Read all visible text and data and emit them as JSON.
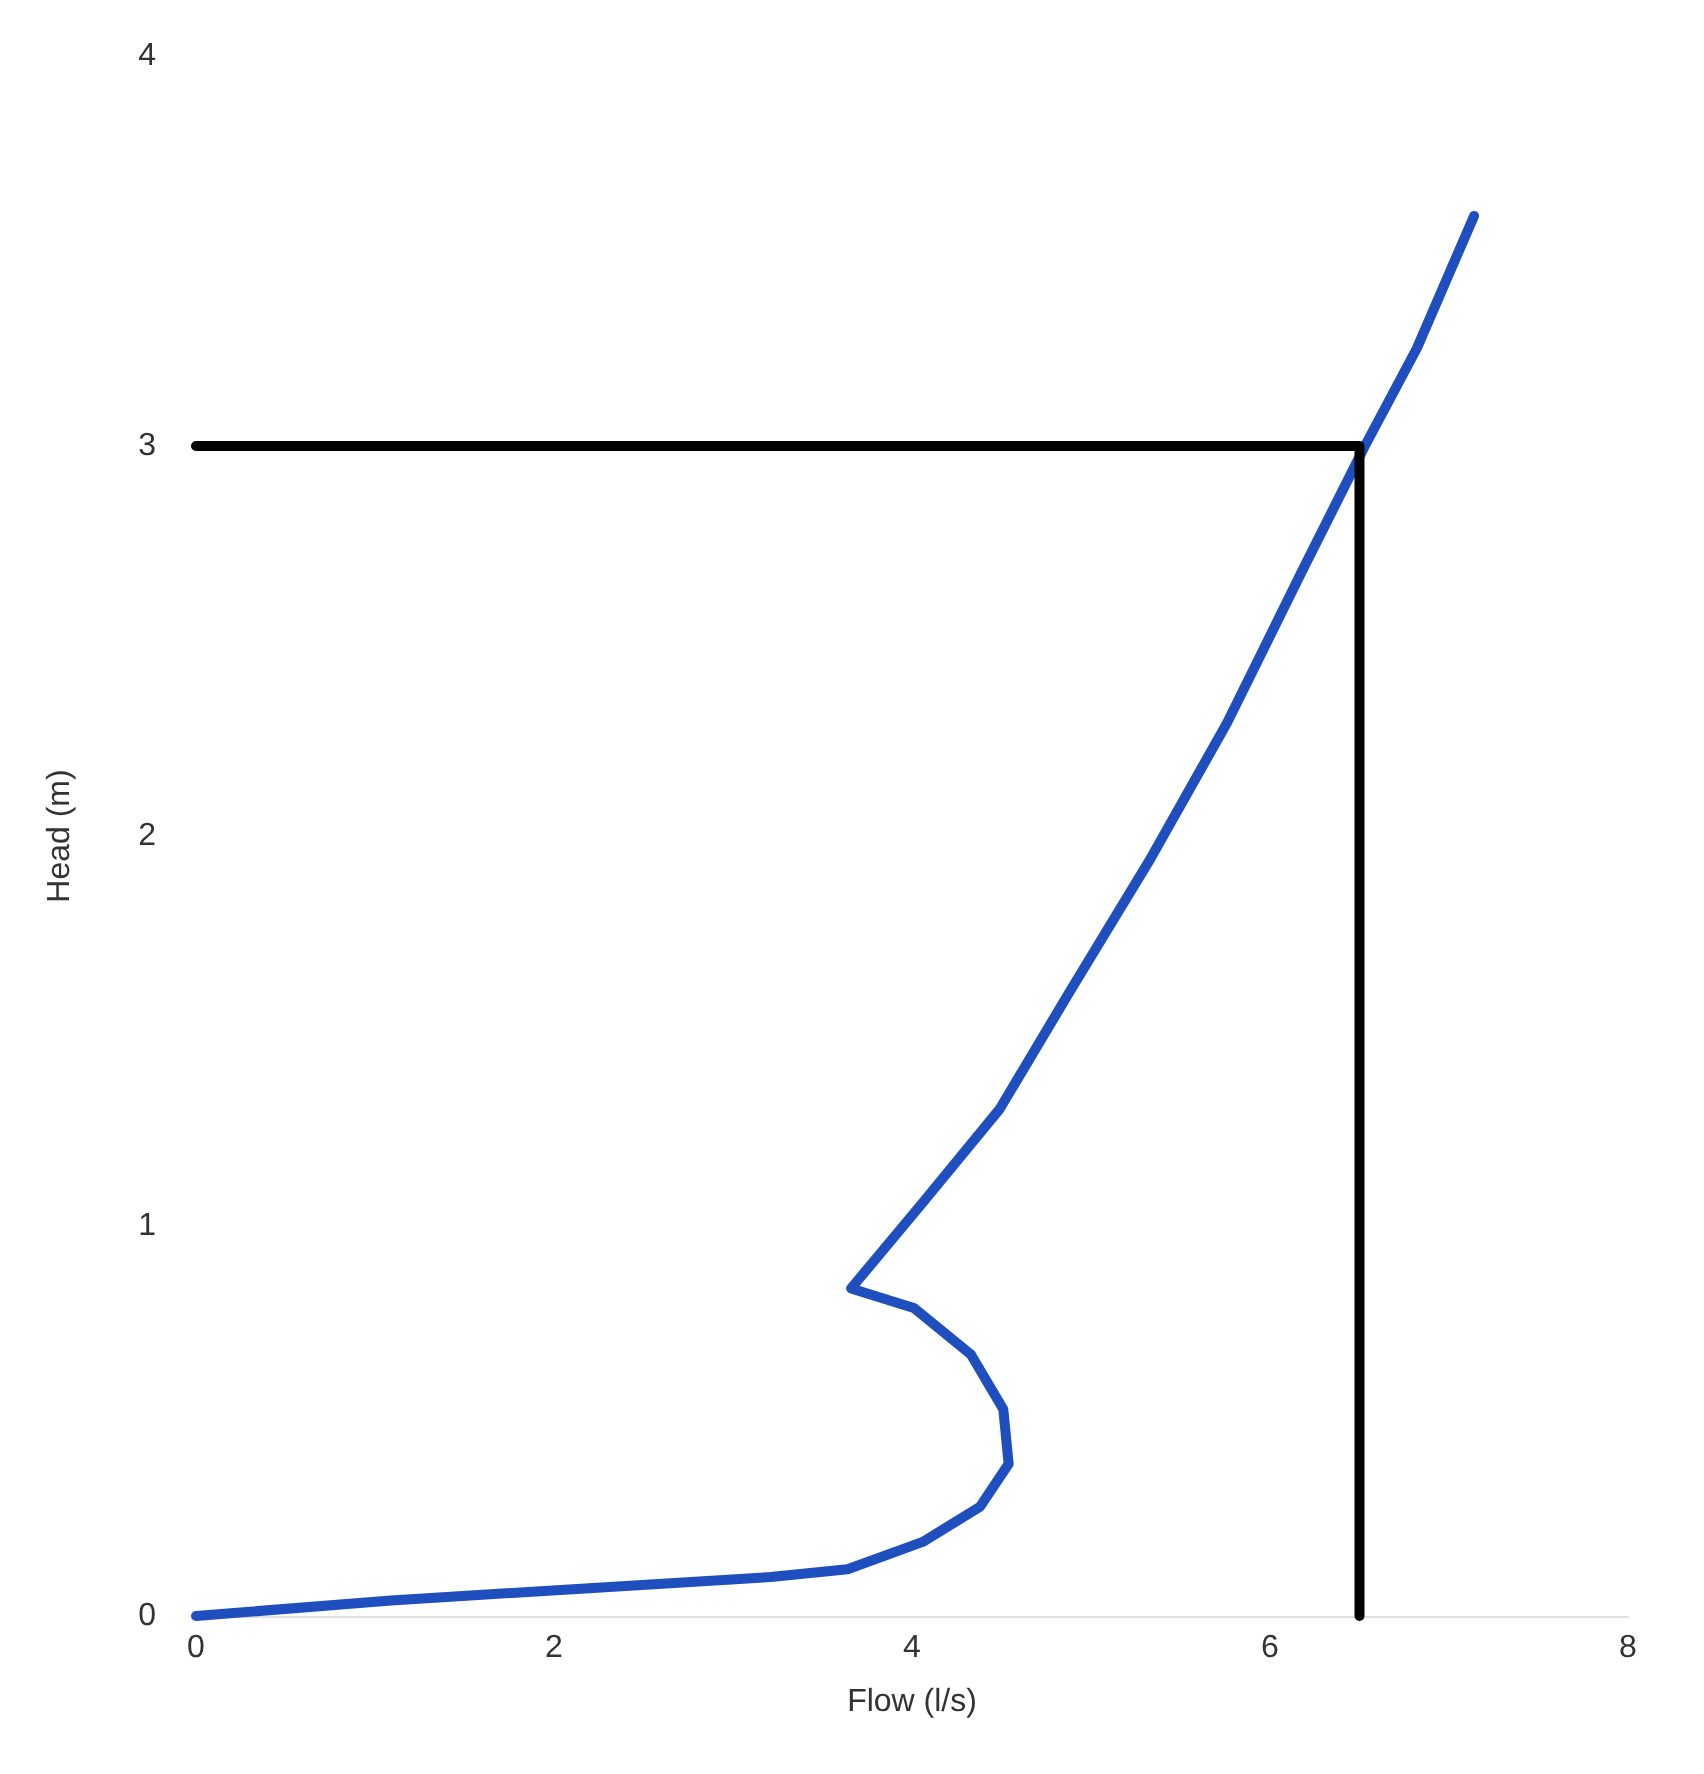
{
  "chart_data": {
    "type": "line",
    "xlabel": "Flow (l/s)",
    "ylabel": "Head (m)",
    "xlim": [
      0,
      8
    ],
    "xticks": [
      0,
      2,
      4,
      6,
      8
    ],
    "ylim": [
      0,
      4
    ],
    "yticks": [
      0,
      1,
      2,
      3,
      4
    ],
    "marker": "none",
    "series": [
      {
        "color": "#1f4fbf",
        "x": [
          0,
          1.09,
          2.15,
          3.21,
          3.64,
          4.06,
          4.38,
          4.54,
          4.51,
          4.33,
          4.01,
          3.66,
          4.06,
          4.49,
          4.88,
          5.33,
          5.76,
          6.18,
          6.53,
          6.82,
          7.14
        ],
        "values": [
          0,
          0.04,
          0.07,
          0.1,
          0.12,
          0.19,
          0.28,
          0.39,
          0.53,
          0.67,
          0.79,
          0.84,
          1.06,
          1.3,
          1.6,
          1.94,
          2.29,
          2.68,
          3.0,
          3.25,
          3.59
        ]
      },
      {
        "color": "#000000",
        "x": [
          0,
          6.5,
          6.5
        ],
        "values": [
          3,
          3,
          0
        ]
      }
    ]
  }
}
